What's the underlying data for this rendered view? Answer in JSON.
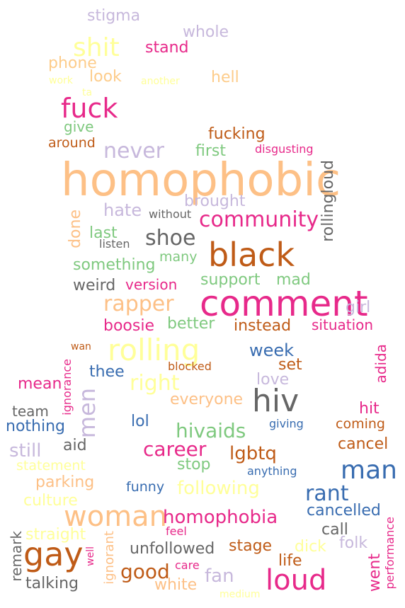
{
  "words": [
    {
      "text": "stigma",
      "color": "#c7b8dc"
    },
    {
      "text": "whole",
      "color": "#c7b8dc"
    },
    {
      "text": "shit",
      "color": "#ffff99"
    },
    {
      "text": "stand",
      "color": "#e7298a"
    },
    {
      "text": "phone",
      "color": "#fdcc8a"
    },
    {
      "text": "look",
      "color": "#fdcc8a"
    },
    {
      "text": "work",
      "color": "#ffff99"
    },
    {
      "text": "another",
      "color": "#ffff99"
    },
    {
      "text": "hell",
      "color": "#fdcc8a"
    },
    {
      "text": "ta",
      "color": "#ffff99"
    },
    {
      "text": "fuck",
      "color": "#e7298a"
    },
    {
      "text": "give",
      "color": "#7fc97f"
    },
    {
      "text": "fucking",
      "color": "#bf5b17"
    },
    {
      "text": "around",
      "color": "#bf5b17"
    },
    {
      "text": "never",
      "color": "#c7b8dc"
    },
    {
      "text": "first",
      "color": "#7fc97f"
    },
    {
      "text": "disgusting",
      "color": "#e7298a"
    },
    {
      "text": "homophobic",
      "color": "#fdc086"
    },
    {
      "text": "rollingloud",
      "color": "#666666"
    },
    {
      "text": "brought",
      "color": "#c7b8dc"
    },
    {
      "text": "hate",
      "color": "#c7b8dc"
    },
    {
      "text": "without",
      "color": "#666666"
    },
    {
      "text": "community",
      "color": "#e7298a"
    },
    {
      "text": "done",
      "color": "#fdc086"
    },
    {
      "text": "last",
      "color": "#7fc97f"
    },
    {
      "text": "shoe",
      "color": "#666666"
    },
    {
      "text": "listen",
      "color": "#666666"
    },
    {
      "text": "black",
      "color": "#bf5b17"
    },
    {
      "text": "many",
      "color": "#7fc97f"
    },
    {
      "text": "something",
      "color": "#7fc97f"
    },
    {
      "text": "support",
      "color": "#7fc97f"
    },
    {
      "text": "mad",
      "color": "#7fc97f"
    },
    {
      "text": "weird",
      "color": "#666666"
    },
    {
      "text": "version",
      "color": "#e7298a"
    },
    {
      "text": "rapper",
      "color": "#fdc086"
    },
    {
      "text": "comment",
      "color": "#e7298a"
    },
    {
      "text": "girl",
      "color": "#c7b8dc"
    },
    {
      "text": "boosie",
      "color": "#e7298a"
    },
    {
      "text": "better",
      "color": "#7fc97f"
    },
    {
      "text": "instead",
      "color": "#bf5b17"
    },
    {
      "text": "situation",
      "color": "#e7298a"
    },
    {
      "text": "wan",
      "color": "#bf5b17"
    },
    {
      "text": "rolling",
      "color": "#ffff99"
    },
    {
      "text": "week",
      "color": "#386cb0"
    },
    {
      "text": "adida",
      "color": "#e7298a"
    },
    {
      "text": "thee",
      "color": "#386cb0"
    },
    {
      "text": "blocked",
      "color": "#bf5b17"
    },
    {
      "text": "set",
      "color": "#bf5b17"
    },
    {
      "text": "right",
      "color": "#ffff99"
    },
    {
      "text": "love",
      "color": "#c7b8dc"
    },
    {
      "text": "mean",
      "color": "#e7298a"
    },
    {
      "text": "ignorance",
      "color": "#e7298a"
    },
    {
      "text": "men",
      "color": "#c7b8dc"
    },
    {
      "text": "everyone",
      "color": "#fdc086"
    },
    {
      "text": "hiv",
      "color": "#666666"
    },
    {
      "text": "team",
      "color": "#666666"
    },
    {
      "text": "hit",
      "color": "#e7298a"
    },
    {
      "text": "nothing",
      "color": "#386cb0"
    },
    {
      "text": "lol",
      "color": "#386cb0"
    },
    {
      "text": "giving",
      "color": "#386cb0"
    },
    {
      "text": "coming",
      "color": "#bf5b17"
    },
    {
      "text": "hivaids",
      "color": "#7fc97f"
    },
    {
      "text": "still",
      "color": "#c7b8dc"
    },
    {
      "text": "aid",
      "color": "#666666"
    },
    {
      "text": "career",
      "color": "#e7298a"
    },
    {
      "text": "lgbtq",
      "color": "#bf5b17"
    },
    {
      "text": "cancel",
      "color": "#bf5b17"
    },
    {
      "text": "statement",
      "color": "#ffff99"
    },
    {
      "text": "stop",
      "color": "#7fc97f"
    },
    {
      "text": "anything",
      "color": "#386cb0"
    },
    {
      "text": "man",
      "color": "#386cb0"
    },
    {
      "text": "parking",
      "color": "#fdc086"
    },
    {
      "text": "funny",
      "color": "#386cb0"
    },
    {
      "text": "following",
      "color": "#ffff99"
    },
    {
      "text": "culture",
      "color": "#ffff99"
    },
    {
      "text": "rant",
      "color": "#386cb0"
    },
    {
      "text": "woman",
      "color": "#fdc086"
    },
    {
      "text": "homophobia",
      "color": "#e7298a"
    },
    {
      "text": "cancelled",
      "color": "#386cb0"
    },
    {
      "text": "straight",
      "color": "#ffff99"
    },
    {
      "text": "feel",
      "color": "#e7298a"
    },
    {
      "text": "call",
      "color": "#666666"
    },
    {
      "text": "performance",
      "color": "#e7298a"
    },
    {
      "text": "remark",
      "color": "#666666"
    },
    {
      "text": "ignorant",
      "color": "#fdc086"
    },
    {
      "text": "well",
      "color": "#e7298a"
    },
    {
      "text": "gay",
      "color": "#bf5b17"
    },
    {
      "text": "unfollowed",
      "color": "#666666"
    },
    {
      "text": "stage",
      "color": "#bf5b17"
    },
    {
      "text": "dick",
      "color": "#ffff99"
    },
    {
      "text": "folk",
      "color": "#c7b8dc"
    },
    {
      "text": "life",
      "color": "#bf5b17"
    },
    {
      "text": "went",
      "color": "#e7298a"
    },
    {
      "text": "good",
      "color": "#bf5b17"
    },
    {
      "text": "care",
      "color": "#e7298a"
    },
    {
      "text": "fan",
      "color": "#c7b8dc"
    },
    {
      "text": "loud",
      "color": "#e7298a"
    },
    {
      "text": "talking",
      "color": "#666666"
    },
    {
      "text": "white",
      "color": "#fdc086"
    },
    {
      "text": "medium",
      "color": "#ffff99"
    }
  ]
}
